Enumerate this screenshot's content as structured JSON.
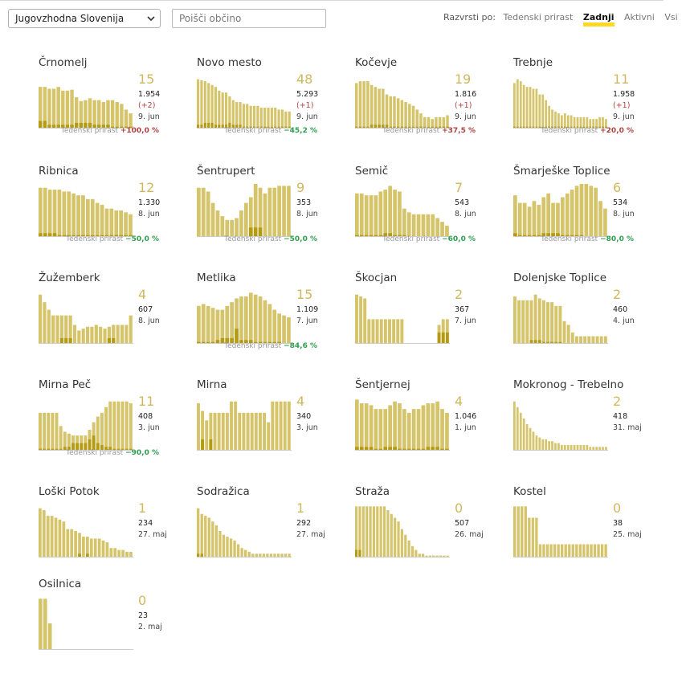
{
  "region_select": {
    "value": "Jugovzhodna Slovenija"
  },
  "search": {
    "placeholder": "Poišči občino"
  },
  "sort": {
    "label": "Razvrsti po:",
    "options": [
      "Tedenski prirast",
      "Zadnji",
      "Aktivni",
      "Vsi"
    ],
    "active": "Zadnji"
  },
  "colors": {
    "bar": "#d6c46a",
    "bar_dark": "#b59b12",
    "up": "#b0413e",
    "down": "#2e9e4f",
    "highlight": "#ffd922"
  },
  "growth_label": "Tedenski prirast",
  "municipalities": [
    {
      "name": "Črnomelj",
      "active": "15",
      "total": "1.954",
      "diff": "(+2)",
      "date": "9. jun",
      "growth": "+100,0 %",
      "dir": "up",
      "bars": [
        44,
        44,
        42,
        42,
        44,
        40,
        40,
        41,
        33,
        29,
        30,
        32,
        30,
        30,
        28,
        30,
        30,
        28,
        26,
        20,
        16
      ],
      "dark": [
        8,
        8,
        4,
        4,
        4,
        4,
        4,
        4,
        6,
        6,
        6,
        6,
        4,
        4,
        4,
        4,
        2,
        2,
        2,
        2,
        2
      ]
    },
    {
      "name": "Novo mesto",
      "active": "48",
      "total": "5.293",
      "diff": "(+1)",
      "date": "9. jun",
      "growth": "−45,2 %",
      "dir": "down",
      "bars": [
        52,
        51,
        50,
        48,
        46,
        44,
        40,
        38,
        38,
        34,
        30,
        28,
        28,
        26,
        26,
        24,
        24,
        24,
        22,
        22,
        22,
        22,
        22,
        20,
        20,
        18,
        18
      ],
      "dark": [
        4,
        4,
        6,
        6,
        6,
        4,
        4,
        4,
        4,
        6,
        4,
        4,
        4,
        2,
        2,
        2,
        2,
        2,
        2,
        2,
        2,
        2,
        2,
        2,
        2,
        2,
        2
      ]
    },
    {
      "name": "Kočevje",
      "active": "19",
      "total": "1.816",
      "diff": "(+1)",
      "date": "9. jun",
      "growth": "+37,5 %",
      "dir": "up",
      "bars": [
        48,
        50,
        50,
        50,
        46,
        44,
        42,
        42,
        36,
        34,
        34,
        32,
        30,
        28,
        26,
        24,
        20,
        16,
        12,
        12,
        10,
        12,
        12,
        12,
        14
      ],
      "dark": [
        2,
        2,
        2,
        2,
        4,
        4,
        4,
        4,
        4,
        2,
        2,
        2,
        2,
        2,
        2,
        2,
        2,
        2,
        2,
        2,
        2,
        2,
        2,
        2,
        2
      ]
    },
    {
      "name": "Trebnje",
      "active": "11",
      "total": "1.958",
      "diff": "(+1)",
      "date": "9. jun",
      "growth": "+20,0 %",
      "dir": "up",
      "bars": [
        48,
        52,
        50,
        46,
        44,
        44,
        42,
        42,
        36,
        36,
        30,
        24,
        20,
        18,
        16,
        14,
        16,
        14,
        14,
        12,
        12,
        12,
        12,
        12,
        10,
        10,
        10,
        12,
        12,
        10
      ],
      "dark": [
        2,
        2,
        2,
        2,
        2,
        2,
        2,
        2,
        2,
        2,
        2,
        2,
        2,
        2,
        2,
        2,
        2,
        2,
        2,
        2,
        2,
        2,
        2,
        2,
        2,
        2,
        2,
        2,
        2,
        2
      ]
    },
    {
      "name": "Ribnica",
      "active": "12",
      "total": "1.330",
      "diff": "",
      "date": "8. jun",
      "growth": "−50,0 %",
      "dir": "down",
      "bars": [
        52,
        52,
        50,
        50,
        50,
        48,
        48,
        46,
        44,
        44,
        40,
        40,
        36,
        34,
        30,
        30,
        28,
        28,
        26,
        24
      ],
      "dark": [
        4,
        4,
        4,
        4,
        2,
        2,
        2,
        2,
        2,
        2,
        2,
        2,
        2,
        2,
        2,
        2,
        2,
        2,
        2,
        2
      ]
    },
    {
      "name": "Šentrupert",
      "active": "9",
      "total": "353",
      "diff": "",
      "date": "8. jun",
      "growth": "−50,0 %",
      "dir": "down",
      "bars": [
        52,
        52,
        48,
        36,
        28,
        22,
        18,
        18,
        20,
        28,
        36,
        42,
        56,
        52,
        46,
        52,
        52,
        54,
        54,
        54
      ],
      "dark": [
        0,
        0,
        0,
        0,
        0,
        0,
        0,
        0,
        0,
        0,
        0,
        10,
        10,
        10,
        0,
        0,
        0,
        0,
        0,
        0
      ]
    },
    {
      "name": "Semič",
      "active": "7",
      "total": "543",
      "diff": "",
      "date": "8. jun",
      "growth": "−60,0 %",
      "dir": "down",
      "bars": [
        46,
        46,
        44,
        44,
        44,
        48,
        50,
        54,
        50,
        48,
        30,
        26,
        24,
        24,
        24,
        24,
        24,
        20,
        16,
        12
      ],
      "dark": [
        2,
        2,
        2,
        2,
        2,
        2,
        4,
        4,
        2,
        2,
        2,
        0,
        0,
        0,
        0,
        0,
        0,
        0,
        0,
        0
      ]
    },
    {
      "name": "Šmarješke Toplice",
      "active": "6",
      "total": "534",
      "diff": "",
      "date": "8. jun",
      "growth": "−80,0 %",
      "dir": "down",
      "bars": [
        44,
        36,
        36,
        32,
        38,
        34,
        42,
        46,
        36,
        36,
        42,
        46,
        50,
        54,
        56,
        56,
        54,
        52,
        38,
        30
      ],
      "dark": [
        4,
        2,
        2,
        2,
        2,
        2,
        4,
        4,
        4,
        4,
        2,
        2,
        2,
        2,
        2,
        0,
        0,
        0,
        0,
        0
      ]
    },
    {
      "name": "Žužemberk",
      "active": "4",
      "total": "607",
      "diff": "",
      "date": "8. jun",
      "growth": "",
      "dir": "",
      "bars": [
        52,
        44,
        36,
        30,
        30,
        30,
        30,
        30,
        20,
        14,
        16,
        18,
        18,
        20,
        18,
        16,
        18,
        20,
        20,
        20,
        20,
        30
      ],
      "dark": [
        0,
        0,
        0,
        0,
        0,
        6,
        6,
        6,
        0,
        0,
        0,
        0,
        0,
        0,
        0,
        0,
        6,
        6,
        0,
        0,
        0,
        0
      ]
    },
    {
      "name": "Metlika",
      "active": "15",
      "total": "1.109",
      "diff": "",
      "date": "7. jun",
      "growth": "−84,6 %",
      "dir": "down",
      "bars": [
        40,
        42,
        40,
        38,
        36,
        36,
        40,
        44,
        48,
        50,
        50,
        54,
        52,
        50,
        46,
        42,
        36,
        32,
        30,
        28
      ],
      "dark": [
        2,
        2,
        2,
        2,
        4,
        6,
        6,
        6,
        16,
        4,
        4,
        4,
        2,
        2,
        2,
        2,
        2,
        2,
        0,
        0
      ]
    },
    {
      "name": "Škocjan",
      "active": "2",
      "total": "367",
      "diff": "",
      "date": "7. jun",
      "growth": "",
      "dir": "",
      "bars": [
        52,
        50,
        48,
        26,
        26,
        26,
        26,
        26,
        26,
        26,
        26,
        26,
        0,
        0,
        0,
        0,
        0,
        0,
        0,
        0,
        20,
        26,
        26
      ],
      "dark": [
        0,
        0,
        0,
        0,
        0,
        0,
        0,
        0,
        0,
        0,
        0,
        0,
        0,
        0,
        0,
        0,
        0,
        0,
        0,
        0,
        12,
        12,
        12
      ]
    },
    {
      "name": "Dolenjske Toplice",
      "active": "2",
      "total": "460",
      "diff": "",
      "date": "4. jun",
      "growth": "",
      "dir": "",
      "bars": [
        50,
        46,
        46,
        46,
        46,
        52,
        48,
        46,
        44,
        44,
        40,
        40,
        24,
        20,
        12,
        8,
        8,
        8,
        8,
        8,
        8,
        8,
        8
      ],
      "dark": [
        0,
        0,
        0,
        0,
        4,
        4,
        4,
        2,
        2,
        2,
        2,
        2,
        0,
        0,
        0,
        0,
        0,
        0,
        0,
        0,
        0,
        0,
        0
      ]
    },
    {
      "name": "Mirna Peč",
      "active": "11",
      "total": "408",
      "diff": "",
      "date": "3. jun",
      "growth": "−90,0 %",
      "dir": "down",
      "bars": [
        40,
        40,
        40,
        40,
        40,
        26,
        20,
        18,
        16,
        16,
        16,
        16,
        22,
        30,
        36,
        40,
        46,
        52,
        52,
        52,
        52,
        52,
        50
      ],
      "dark": [
        2,
        2,
        2,
        2,
        2,
        2,
        4,
        4,
        8,
        8,
        8,
        8,
        12,
        16,
        8,
        6,
        4,
        4,
        2,
        2,
        2,
        2,
        2
      ]
    },
    {
      "name": "Mirna",
      "active": "4",
      "total": "340",
      "diff": "",
      "date": "3. jun",
      "growth": "",
      "dir": "",
      "bars": [
        50,
        42,
        32,
        40,
        40,
        40,
        40,
        40,
        52,
        52,
        40,
        40,
        40,
        40,
        40,
        40,
        40,
        30,
        52,
        52,
        52,
        52,
        52
      ],
      "dark": [
        0,
        12,
        0,
        12,
        0,
        0,
        0,
        0,
        0,
        0,
        0,
        0,
        0,
        0,
        0,
        0,
        0,
        0,
        0,
        0,
        0,
        0,
        0
      ]
    },
    {
      "name": "Šentjernej",
      "active": "4",
      "total": "1.046",
      "diff": "",
      "date": "1. jun",
      "growth": "",
      "dir": "",
      "bars": [
        54,
        50,
        50,
        48,
        44,
        44,
        44,
        48,
        52,
        50,
        44,
        40,
        44,
        44,
        48,
        50,
        50,
        52,
        44,
        40
      ],
      "dark": [
        4,
        4,
        4,
        4,
        2,
        2,
        4,
        4,
        4,
        2,
        2,
        2,
        2,
        2,
        2,
        4,
        4,
        4,
        2,
        2
      ]
    },
    {
      "name": "Mokronog - Trebelno",
      "active": "2",
      "total": "418",
      "diff": "",
      "date": "31. maj",
      "growth": "",
      "dir": "",
      "bars": [
        52,
        46,
        40,
        34,
        28,
        24,
        20,
        16,
        14,
        12,
        12,
        10,
        10,
        8,
        8,
        6,
        6,
        6,
        6,
        6,
        6,
        6,
        6,
        6,
        4,
        4,
        4,
        4,
        4,
        4
      ],
      "dark": [
        0,
        0,
        0,
        0,
        0,
        0,
        0,
        0,
        0,
        0,
        0,
        0,
        0,
        0,
        0,
        0,
        0,
        0,
        0,
        0,
        0,
        0,
        0,
        0,
        0,
        0,
        0,
        0,
        0,
        0
      ]
    },
    {
      "name": "Loški Potok",
      "active": "1",
      "total": "234",
      "diff": "",
      "date": "27. maj",
      "growth": "",
      "dir": "",
      "bars": [
        52,
        50,
        44,
        44,
        42,
        40,
        38,
        30,
        30,
        28,
        26,
        22,
        22,
        20,
        20,
        20,
        18,
        16,
        10,
        10,
        8,
        8,
        6,
        6
      ],
      "dark": [
        0,
        0,
        0,
        0,
        0,
        0,
        0,
        0,
        0,
        0,
        4,
        0,
        4,
        0,
        0,
        0,
        0,
        0,
        0,
        0,
        0,
        0,
        0,
        0
      ]
    },
    {
      "name": "Sodražica",
      "active": "1",
      "total": "292",
      "diff": "",
      "date": "27. maj",
      "growth": "",
      "dir": "",
      "bars": [
        52,
        46,
        44,
        42,
        38,
        34,
        28,
        24,
        22,
        20,
        18,
        14,
        10,
        8,
        6,
        4,
        4,
        4,
        4,
        4,
        4,
        4,
        4,
        4,
        4,
        4
      ],
      "dark": [
        4,
        4,
        0,
        0,
        0,
        0,
        0,
        0,
        0,
        0,
        0,
        0,
        0,
        0,
        0,
        0,
        0,
        0,
        0,
        0,
        0,
        0,
        0,
        0,
        0,
        0
      ]
    },
    {
      "name": "Straža",
      "active": "0",
      "total": "507",
      "diff": "",
      "date": "26. maj",
      "growth": "",
      "dir": "",
      "bars": [
        54,
        54,
        54,
        54,
        54,
        54,
        54,
        54,
        54,
        50,
        46,
        42,
        38,
        30,
        24,
        18,
        12,
        8,
        4,
        4,
        2,
        2,
        2,
        2,
        2,
        2,
        2
      ],
      "dark": [
        8,
        8,
        0,
        0,
        0,
        0,
        0,
        0,
        0,
        0,
        0,
        0,
        0,
        0,
        0,
        0,
        0,
        0,
        0,
        0,
        0,
        0,
        0,
        0,
        0,
        0,
        0
      ]
    },
    {
      "name": "Kostel",
      "active": "0",
      "total": "38",
      "diff": "",
      "date": "25. maj",
      "growth": "",
      "dir": "",
      "bars": [
        54,
        54,
        54,
        54,
        42,
        42,
        42,
        14,
        14,
        14,
        14,
        14,
        14,
        14,
        14,
        14,
        14,
        14,
        14,
        14,
        14,
        14,
        14,
        14,
        14,
        14
      ],
      "dark": [
        0,
        0,
        0,
        0,
        0,
        0,
        0,
        0,
        0,
        0,
        0,
        0,
        0,
        0,
        0,
        0,
        0,
        0,
        0,
        0,
        0,
        0,
        0,
        0,
        0,
        0
      ]
    },
    {
      "name": "Osilnica",
      "active": "0",
      "total": "23",
      "diff": "",
      "date": "2. maj",
      "growth": "",
      "dir": "",
      "bars": [
        54,
        54,
        28,
        0,
        0,
        0,
        0,
        0,
        0,
        0,
        0,
        0,
        0,
        0,
        0,
        0,
        0,
        0,
        0,
        0
      ],
      "dark": [
        0,
        0,
        0,
        0,
        0,
        0,
        0,
        0,
        0,
        0,
        0,
        0,
        0,
        0,
        0,
        0,
        0,
        0,
        0,
        0
      ]
    }
  ]
}
